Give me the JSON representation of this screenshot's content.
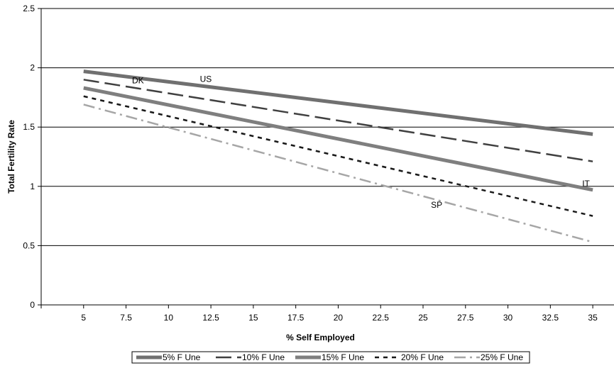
{
  "chart_data": {
    "type": "line",
    "xlabel": "% Self Employed",
    "ylabel": "Total Fertility Rate",
    "xlim": [
      2.5,
      36.25
    ],
    "ylim": [
      0,
      2.5
    ],
    "x_ticks": [
      "5",
      "7.5",
      "10",
      "12.5",
      "15",
      "17.5",
      "20",
      "22.5",
      "25",
      "27.5",
      "30",
      "32.5",
      "35"
    ],
    "y_ticks": [
      "0",
      "0.5",
      "1",
      "1.5",
      "2",
      "2.5"
    ],
    "grid": "horizontal",
    "legend_position": "bottom",
    "series": [
      {
        "name": "5% F Une",
        "x": [
          5,
          35
        ],
        "y": [
          1.97,
          1.44
        ],
        "color": "#707070",
        "style": "solid-thick"
      },
      {
        "name": "10% F Une",
        "x": [
          5,
          35
        ],
        "y": [
          1.9,
          1.21
        ],
        "color": "#404040",
        "style": "long-dash"
      },
      {
        "name": "15% F Une",
        "x": [
          5,
          35
        ],
        "y": [
          1.83,
          0.97
        ],
        "color": "#7f7f7f",
        "style": "solid-thick"
      },
      {
        "name": "20% F Une",
        "x": [
          5,
          35
        ],
        "y": [
          1.76,
          0.75
        ],
        "color": "#1a1a1a",
        "style": "short-dash"
      },
      {
        "name": "25% F Une",
        "x": [
          5,
          35
        ],
        "y": [
          1.69,
          0.53
        ],
        "color": "#a6a6a6",
        "style": "dash-dot"
      }
    ],
    "annotations": [
      {
        "text": "DK",
        "x": 8.2,
        "y": 1.87
      },
      {
        "text": "US",
        "x": 12.2,
        "y": 1.88
      },
      {
        "text": "IT",
        "x": 34.6,
        "y": 1.0
      },
      {
        "text": "SP",
        "x": 25.8,
        "y": 0.82
      }
    ]
  }
}
